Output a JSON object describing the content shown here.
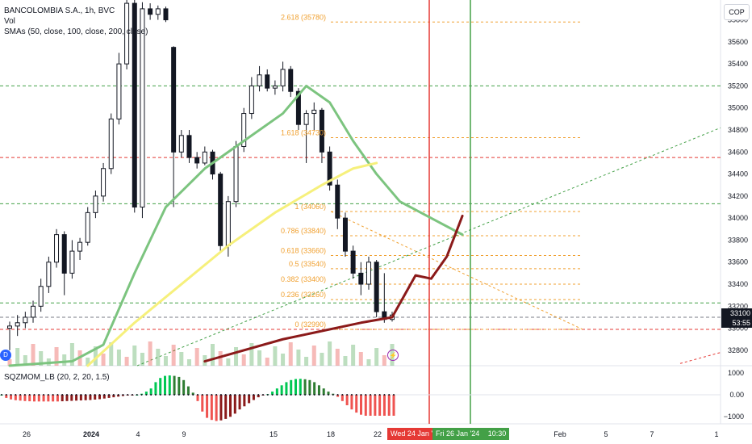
{
  "header": {
    "symbol": "BANCOLOMBIA S.A., 1h, BVC",
    "vol_label": "Vol",
    "sma_label": "SMAs (50, close, 100, close, 200, close)",
    "currency": "COP",
    "osc_label": "SQZMOM_LB (20, 2, 20, 1.5)"
  },
  "price_tag": {
    "price": "33100",
    "countdown": "53:55"
  },
  "time_tags": {
    "left": "Wed 24 Jan '24",
    "right": "Fri 26 Jan '24",
    "right_time": "10:30"
  },
  "colors": {
    "accent_red": "#e53935",
    "accent_green": "#43a047",
    "fib": "#f0a030",
    "sma50": "#7cc47f",
    "sma100": "#f6f07c",
    "sma200": "#8b1a1a"
  },
  "chart_data": [
    {
      "type": "candlestick",
      "title": "BANCOLOMBIA S.A., 1h, BVC",
      "y_axis_ticks": [
        32800,
        33000,
        33200,
        33400,
        33600,
        33800,
        34000,
        34200,
        34400,
        34600,
        34800,
        35000,
        35200,
        35400,
        35600,
        35800
      ],
      "ylim": [
        32660,
        35980
      ],
      "x_axis_ticks": [
        "26",
        "2024",
        "4",
        "9",
        "15",
        "18",
        "22",
        "Feb",
        "5",
        "7",
        "1"
      ],
      "candles": [
        {
          "o": 33000,
          "h": 33060,
          "l": 32800,
          "c": 33020
        },
        {
          "o": 33020,
          "h": 33120,
          "l": 32930,
          "c": 33050
        },
        {
          "o": 33050,
          "h": 33150,
          "l": 33000,
          "c": 33100
        },
        {
          "o": 33100,
          "h": 33250,
          "l": 33050,
          "c": 33200
        },
        {
          "o": 33200,
          "h": 33450,
          "l": 33150,
          "c": 33380
        },
        {
          "o": 33380,
          "h": 33650,
          "l": 33320,
          "c": 33600
        },
        {
          "o": 33600,
          "h": 33900,
          "l": 33550,
          "c": 33850
        },
        {
          "o": 33850,
          "h": 33880,
          "l": 33300,
          "c": 33500
        },
        {
          "o": 33500,
          "h": 33800,
          "l": 33450,
          "c": 33700
        },
        {
          "o": 33700,
          "h": 33820,
          "l": 33620,
          "c": 33780
        },
        {
          "o": 33780,
          "h": 34100,
          "l": 33750,
          "c": 34050
        },
        {
          "o": 34050,
          "h": 34250,
          "l": 34000,
          "c": 34200
        },
        {
          "o": 34200,
          "h": 34500,
          "l": 34150,
          "c": 34450
        },
        {
          "o": 34450,
          "h": 34950,
          "l": 34400,
          "c": 34900
        },
        {
          "o": 34900,
          "h": 35500,
          "l": 34850,
          "c": 35400
        },
        {
          "o": 35400,
          "h": 35980,
          "l": 35350,
          "c": 35950
        },
        {
          "o": 35950,
          "h": 35980,
          "l": 34050,
          "c": 34100
        },
        {
          "o": 34100,
          "h": 35960,
          "l": 34000,
          "c": 35900
        },
        {
          "o": 35900,
          "h": 35950,
          "l": 35800,
          "c": 35850
        },
        {
          "o": 35850,
          "h": 35930,
          "l": 35800,
          "c": 35900
        },
        {
          "o": 35900,
          "h": 35920,
          "l": 35780,
          "c": 35800
        },
        {
          "o": 35550,
          "h": 35560,
          "l": 34100,
          "c": 34600
        },
        {
          "o": 34600,
          "h": 34800,
          "l": 34550,
          "c": 34750
        },
        {
          "o": 34750,
          "h": 34800,
          "l": 34500,
          "c": 34550
        },
        {
          "o": 34550,
          "h": 34600,
          "l": 34450,
          "c": 34500
        },
        {
          "o": 34500,
          "h": 34650,
          "l": 34480,
          "c": 34600
        },
        {
          "o": 34600,
          "h": 34620,
          "l": 34350,
          "c": 34400
        },
        {
          "o": 34400,
          "h": 34420,
          "l": 33700,
          "c": 33750
        },
        {
          "o": 33750,
          "h": 34200,
          "l": 33650,
          "c": 34150
        },
        {
          "o": 34150,
          "h": 34700,
          "l": 34100,
          "c": 34650
        },
        {
          "o": 34650,
          "h": 35000,
          "l": 34600,
          "c": 34950
        },
        {
          "o": 34950,
          "h": 35280,
          "l": 34900,
          "c": 35200
        },
        {
          "o": 35200,
          "h": 35380,
          "l": 35150,
          "c": 35300
        },
        {
          "o": 35300,
          "h": 35350,
          "l": 35150,
          "c": 35180
        },
        {
          "o": 35180,
          "h": 35250,
          "l": 35120,
          "c": 35200
        },
        {
          "o": 35200,
          "h": 35420,
          "l": 35150,
          "c": 35350
        },
        {
          "o": 35350,
          "h": 35380,
          "l": 35100,
          "c": 35150
        },
        {
          "o": 35150,
          "h": 35180,
          "l": 34800,
          "c": 34850
        },
        {
          "o": 34850,
          "h": 34980,
          "l": 34500,
          "c": 34950
        },
        {
          "o": 34950,
          "h": 35050,
          "l": 34800,
          "c": 34980
        },
        {
          "o": 34980,
          "h": 35000,
          "l": 34500,
          "c": 34600
        },
        {
          "o": 34600,
          "h": 34650,
          "l": 34250,
          "c": 34300
        },
        {
          "o": 34300,
          "h": 34350,
          "l": 33900,
          "c": 34000
        },
        {
          "o": 34000,
          "h": 34050,
          "l": 33650,
          "c": 33700
        },
        {
          "o": 33700,
          "h": 33750,
          "l": 33450,
          "c": 33500
        },
        {
          "o": 33500,
          "h": 33600,
          "l": 33300,
          "c": 33400
        },
        {
          "o": 33400,
          "h": 33650,
          "l": 33350,
          "c": 33600
        },
        {
          "o": 33600,
          "h": 33620,
          "l": 33100,
          "c": 33150
        },
        {
          "o": 33150,
          "h": 33500,
          "l": 33050,
          "c": 33080
        },
        {
          "o": 33080,
          "h": 33150,
          "l": 33060,
          "c": 33120
        }
      ]
    },
    {
      "type": "line",
      "series": [
        {
          "x": [
            0,
            8,
            12,
            16,
            20,
            25,
            30,
            35,
            38,
            41,
            44,
            47,
            50,
            54,
            58
          ],
          "y": [
            32660,
            32700,
            32850,
            33500,
            34100,
            34450,
            34700,
            34950,
            35200,
            35050,
            34700,
            34400,
            34150,
            34000,
            33850
          ]
        },
        {
          "x": [
            10,
            16,
            22,
            28,
            34,
            40,
            44,
            47
          ],
          "y": [
            32660,
            33050,
            33400,
            33750,
            34050,
            34300,
            34450,
            34500
          ]
        },
        {
          "x": [
            25,
            35,
            45,
            49,
            52,
            54,
            56,
            58
          ],
          "y": [
            32700,
            32900,
            33050,
            33100,
            33480,
            33450,
            33650,
            34020
          ]
        }
      ]
    },
    {
      "type": "bar",
      "title": "SQZMOM_LB (20, 2, 20, 1.5)",
      "y_axis_ticks": [
        "1000",
        "0.00",
        "−1000"
      ],
      "ylim": [
        -1250,
        1250
      ],
      "values": [
        0,
        -150,
        -220,
        -260,
        -280,
        -300,
        -310,
        -320,
        -320,
        -320,
        -320,
        -320,
        -320,
        -310,
        -300,
        -290,
        -280,
        -270,
        -260,
        -250,
        -230,
        -210,
        -180,
        -150,
        -120,
        -90,
        -60,
        -30,
        -10,
        0,
        50,
        150,
        300,
        600,
        800,
        900,
        920,
        900,
        850,
        700,
        400,
        100,
        -300,
        -800,
        -1100,
        -1200,
        -1250,
        -1220,
        -1150,
        -1050,
        -900,
        -700,
        -550,
        -400,
        -250,
        -120,
        -20,
        30,
        150,
        300,
        450,
        600,
        700,
        750,
        760,
        740,
        700,
        600,
        450,
        300,
        150,
        50,
        -100,
        -300,
        -500,
        -700,
        -850,
        -950,
        -1000,
        -1000,
        -1000,
        -1000,
        -1000,
        -1000,
        -1000
      ]
    }
  ]
}
